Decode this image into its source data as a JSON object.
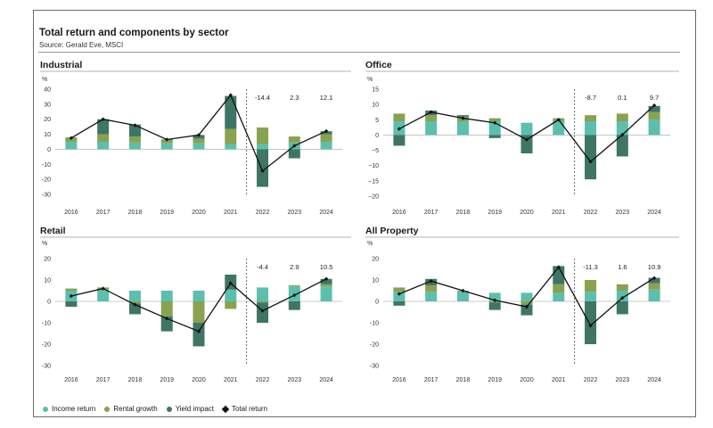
{
  "title": "Total return and components by sector",
  "source": "Source: Gerald Eve, MSCI",
  "colors": {
    "income": "#5cbfae",
    "rental": "#8aa24e",
    "yield": "#3f7565",
    "total": "#111111"
  },
  "legend": [
    {
      "label": "Income return",
      "key": "income"
    },
    {
      "label": "Rental growth",
      "key": "rental"
    },
    {
      "label": "Yield impact",
      "key": "yield"
    },
    {
      "label": "Total return",
      "key": "total"
    }
  ],
  "chart_data": [
    {
      "type": "bar",
      "title": "Industrial",
      "ylabel": "%",
      "ylim": [
        -30,
        40
      ],
      "yticks": [
        40,
        30,
        20,
        10,
        0,
        -10,
        -20,
        -30
      ],
      "tick_format": "plain",
      "categories": [
        "2016",
        "2017",
        "2018",
        "2019",
        "2020",
        "2021",
        "2022",
        "2023",
        "2024"
      ],
      "divider_after": "2021",
      "annotations": [
        {
          "category": "2022",
          "text": "-14.4"
        },
        {
          "category": "2023",
          "text": "2.3"
        },
        {
          "category": "2024",
          "text": "12.1"
        }
      ],
      "series": [
        {
          "name": "Income return",
          "key": "income",
          "values": [
            5,
            5,
            4.5,
            4,
            4,
            3.5,
            3.5,
            4.5,
            5
          ]
        },
        {
          "name": "Rental growth",
          "key": "rental",
          "values": [
            3,
            5,
            4,
            2,
            3,
            10,
            11,
            4,
            5
          ]
        },
        {
          "name": "Yield impact",
          "key": "yield",
          "values": [
            0,
            10,
            8,
            0.5,
            2.5,
            22,
            -25,
            -6,
            2
          ]
        },
        {
          "name": "Total return",
          "key": "total",
          "values": [
            7.5,
            20,
            16,
            6.5,
            9.5,
            36,
            -14.4,
            2.3,
            12.1
          ]
        }
      ]
    },
    {
      "type": "bar",
      "title": "Office",
      "ylabel": "%",
      "ylim": [
        -20,
        15
      ],
      "yticks": [
        15,
        10,
        5,
        0,
        -5,
        -10,
        -15,
        -20
      ],
      "tick_format": "minus",
      "categories": [
        "2016",
        "2017",
        "2018",
        "2019",
        "2020",
        "2021",
        "2022",
        "2023",
        "2024"
      ],
      "divider_after": "2021",
      "annotations": [
        {
          "category": "2022",
          "text": "-8.7"
        },
        {
          "category": "2023",
          "text": "0.1"
        },
        {
          "category": "2024",
          "text": "9.7"
        }
      ],
      "series": [
        {
          "name": "Income return",
          "key": "income",
          "values": [
            4.5,
            4.5,
            4.5,
            4.5,
            4,
            4.5,
            4.5,
            4.5,
            5
          ]
        },
        {
          "name": "Rental growth",
          "key": "rental",
          "values": [
            2.5,
            2,
            1.5,
            1,
            0,
            1,
            2,
            2.5,
            2.5
          ]
        },
        {
          "name": "Yield impact",
          "key": "yield",
          "values": [
            -3.5,
            1.5,
            0.5,
            -1,
            -6,
            0,
            -14.5,
            -7,
            2
          ]
        },
        {
          "name": "Total return",
          "key": "total",
          "values": [
            2,
            7.5,
            5.5,
            4,
            -1.5,
            5,
            -8.7,
            0.1,
            9.7
          ]
        }
      ]
    },
    {
      "type": "bar",
      "title": "Retail",
      "ylabel": "%",
      "ylim": [
        -30,
        20
      ],
      "yticks": [
        20,
        10,
        0,
        -10,
        -20,
        -30
      ],
      "tick_format": "plain",
      "categories": [
        "2016",
        "2017",
        "2018",
        "2019",
        "2020",
        "2021",
        "2022",
        "2023",
        "2024"
      ],
      "divider_after": "2021",
      "annotations": [
        {
          "category": "2022",
          "text": "-4.4"
        },
        {
          "category": "2023",
          "text": "2.9"
        },
        {
          "category": "2024",
          "text": "10.5"
        }
      ],
      "series": [
        {
          "name": "Income return",
          "key": "income",
          "values": [
            5,
            5.5,
            5,
            5,
            5,
            5.5,
            6.5,
            7,
            7
          ]
        },
        {
          "name": "Rental growth",
          "key": "rental",
          "values": [
            1,
            1,
            -1,
            -7,
            -10,
            -3.5,
            -0.5,
            0.5,
            1
          ]
        },
        {
          "name": "Yield impact",
          "key": "yield",
          "values": [
            -2.5,
            0,
            -5,
            -7,
            -11,
            7,
            -9.5,
            -4,
            2.5
          ]
        },
        {
          "name": "Total return",
          "key": "total",
          "values": [
            2.5,
            6,
            -1.5,
            -8,
            -14,
            8.5,
            -4.4,
            2.9,
            10.5
          ]
        }
      ]
    },
    {
      "type": "bar",
      "title": "All Property",
      "ylabel": "%",
      "ylim": [
        -30,
        20
      ],
      "yticks": [
        20,
        10,
        0,
        -10,
        -20,
        -30
      ],
      "tick_format": "plain",
      "categories": [
        "2016",
        "2017",
        "2018",
        "2019",
        "2020",
        "2021",
        "2022",
        "2023",
        "2024"
      ],
      "divider_after": "2021",
      "annotations": [
        {
          "category": "2022",
          "text": "-11.3"
        },
        {
          "category": "2023",
          "text": "1.6"
        },
        {
          "category": "2024",
          "text": "10.9"
        }
      ],
      "series": [
        {
          "name": "Income return",
          "key": "income",
          "values": [
            4.5,
            4.5,
            4.5,
            4,
            4,
            4,
            4.5,
            5,
            5.5
          ]
        },
        {
          "name": "Rental growth",
          "key": "rental",
          "values": [
            2,
            3,
            0.5,
            -0.5,
            -1.5,
            4,
            5.5,
            3,
            3
          ]
        },
        {
          "name": "Yield impact",
          "key": "yield",
          "values": [
            -2,
            3,
            0,
            -3.5,
            -5,
            8.5,
            -20,
            -6,
            2.5
          ]
        },
        {
          "name": "Total return",
          "key": "total",
          "values": [
            3.5,
            9.5,
            5,
            0.5,
            -2.5,
            16,
            -11.3,
            1.6,
            10.9
          ]
        }
      ]
    }
  ]
}
